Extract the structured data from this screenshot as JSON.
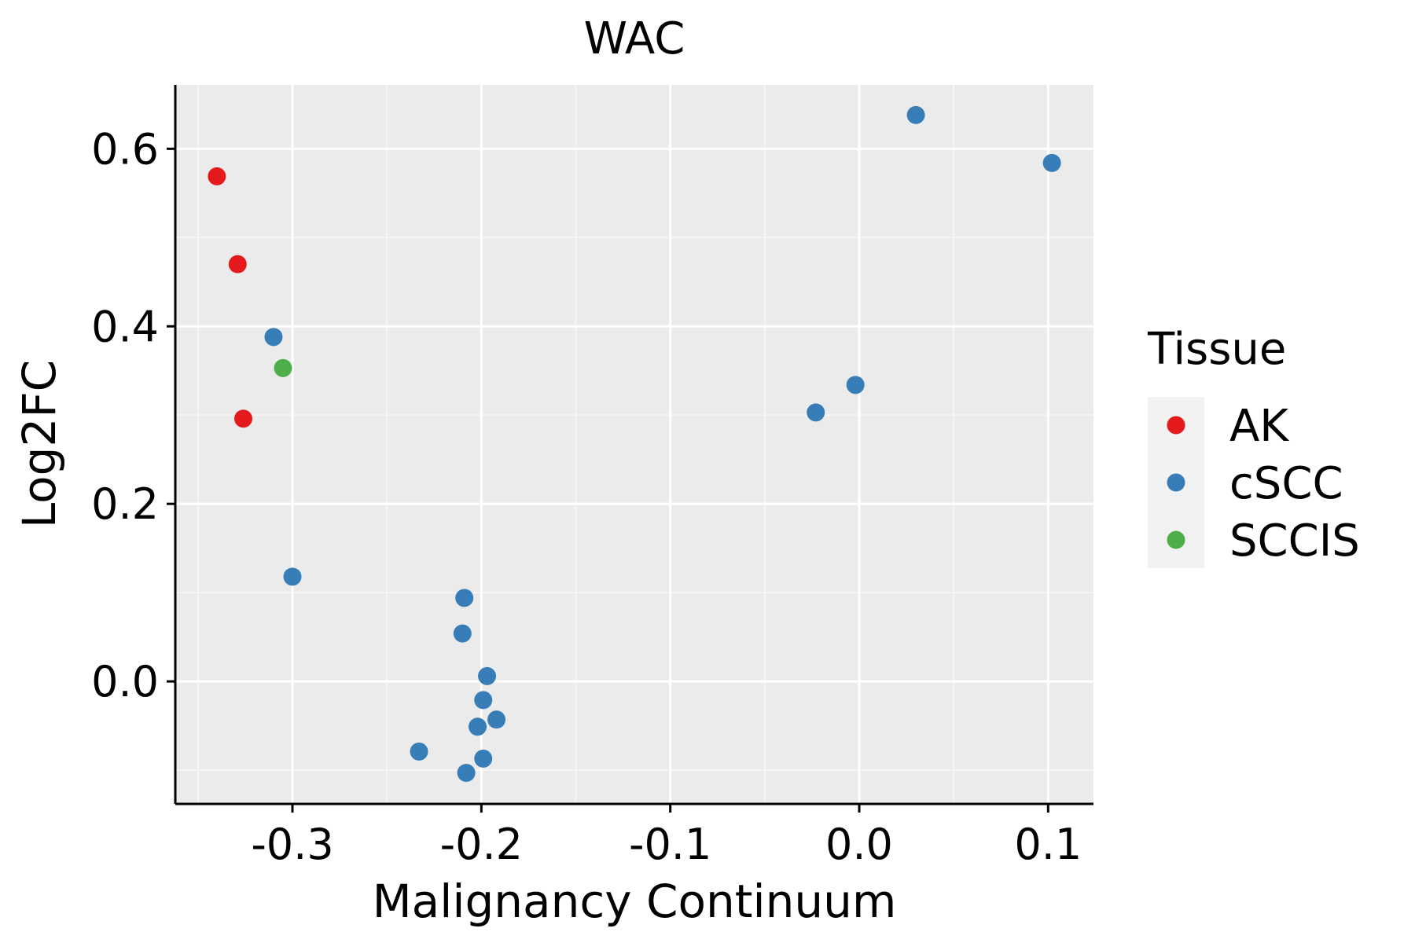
{
  "chart_data": {
    "type": "scatter",
    "title": "WAC",
    "xlabel": "Malignancy Continuum",
    "ylabel": "Log2FC",
    "xlim": [
      -0.362,
      0.124
    ],
    "ylim": [
      -0.138,
      0.672
    ],
    "x_ticks": [
      -0.3,
      -0.2,
      -0.1,
      0.0,
      0.1
    ],
    "x_tick_labels": [
      "-0.3",
      "-0.2",
      "-0.1",
      "0.0",
      "0.1"
    ],
    "y_ticks": [
      0.0,
      0.2,
      0.4,
      0.6
    ],
    "y_tick_labels": [
      "0.0",
      "0.2",
      "0.4",
      "0.6"
    ],
    "grid": true,
    "legend": {
      "title": "Tissue",
      "position": "right",
      "entries": [
        {
          "name": "AK",
          "color": "#E41A1C"
        },
        {
          "name": "cSCC",
          "color": "#377EB8"
        },
        {
          "name": "SCCIS",
          "color": "#4DAF4A"
        }
      ]
    },
    "series": [
      {
        "name": "AK",
        "color": "#E41A1C",
        "points": [
          {
            "x": -0.34,
            "y": 0.569
          },
          {
            "x": -0.329,
            "y": 0.47
          },
          {
            "x": -0.326,
            "y": 0.296
          }
        ]
      },
      {
        "name": "cSCC",
        "color": "#377EB8",
        "points": [
          {
            "x": 0.03,
            "y": 0.638
          },
          {
            "x": 0.102,
            "y": 0.584
          },
          {
            "x": -0.31,
            "y": 0.388
          },
          {
            "x": -0.002,
            "y": 0.334
          },
          {
            "x": -0.023,
            "y": 0.303
          },
          {
            "x": -0.3,
            "y": 0.118
          },
          {
            "x": -0.209,
            "y": 0.094
          },
          {
            "x": -0.21,
            "y": 0.054
          },
          {
            "x": -0.197,
            "y": 0.006
          },
          {
            "x": -0.199,
            "y": -0.021
          },
          {
            "x": -0.192,
            "y": -0.043
          },
          {
            "x": -0.202,
            "y": -0.051
          },
          {
            "x": -0.233,
            "y": -0.079
          },
          {
            "x": -0.199,
            "y": -0.087
          },
          {
            "x": -0.208,
            "y": -0.103
          }
        ]
      },
      {
        "name": "SCCIS",
        "color": "#4DAF4A",
        "points": [
          {
            "x": -0.305,
            "y": 0.353
          }
        ]
      }
    ]
  },
  "colors": {
    "panel_background": "#EBEBEB",
    "grid_major": "#FFFFFF",
    "grid_minor": "#F5F5F5",
    "legend_key_background": "#F2F2F2",
    "axis_line": "#000000"
  }
}
